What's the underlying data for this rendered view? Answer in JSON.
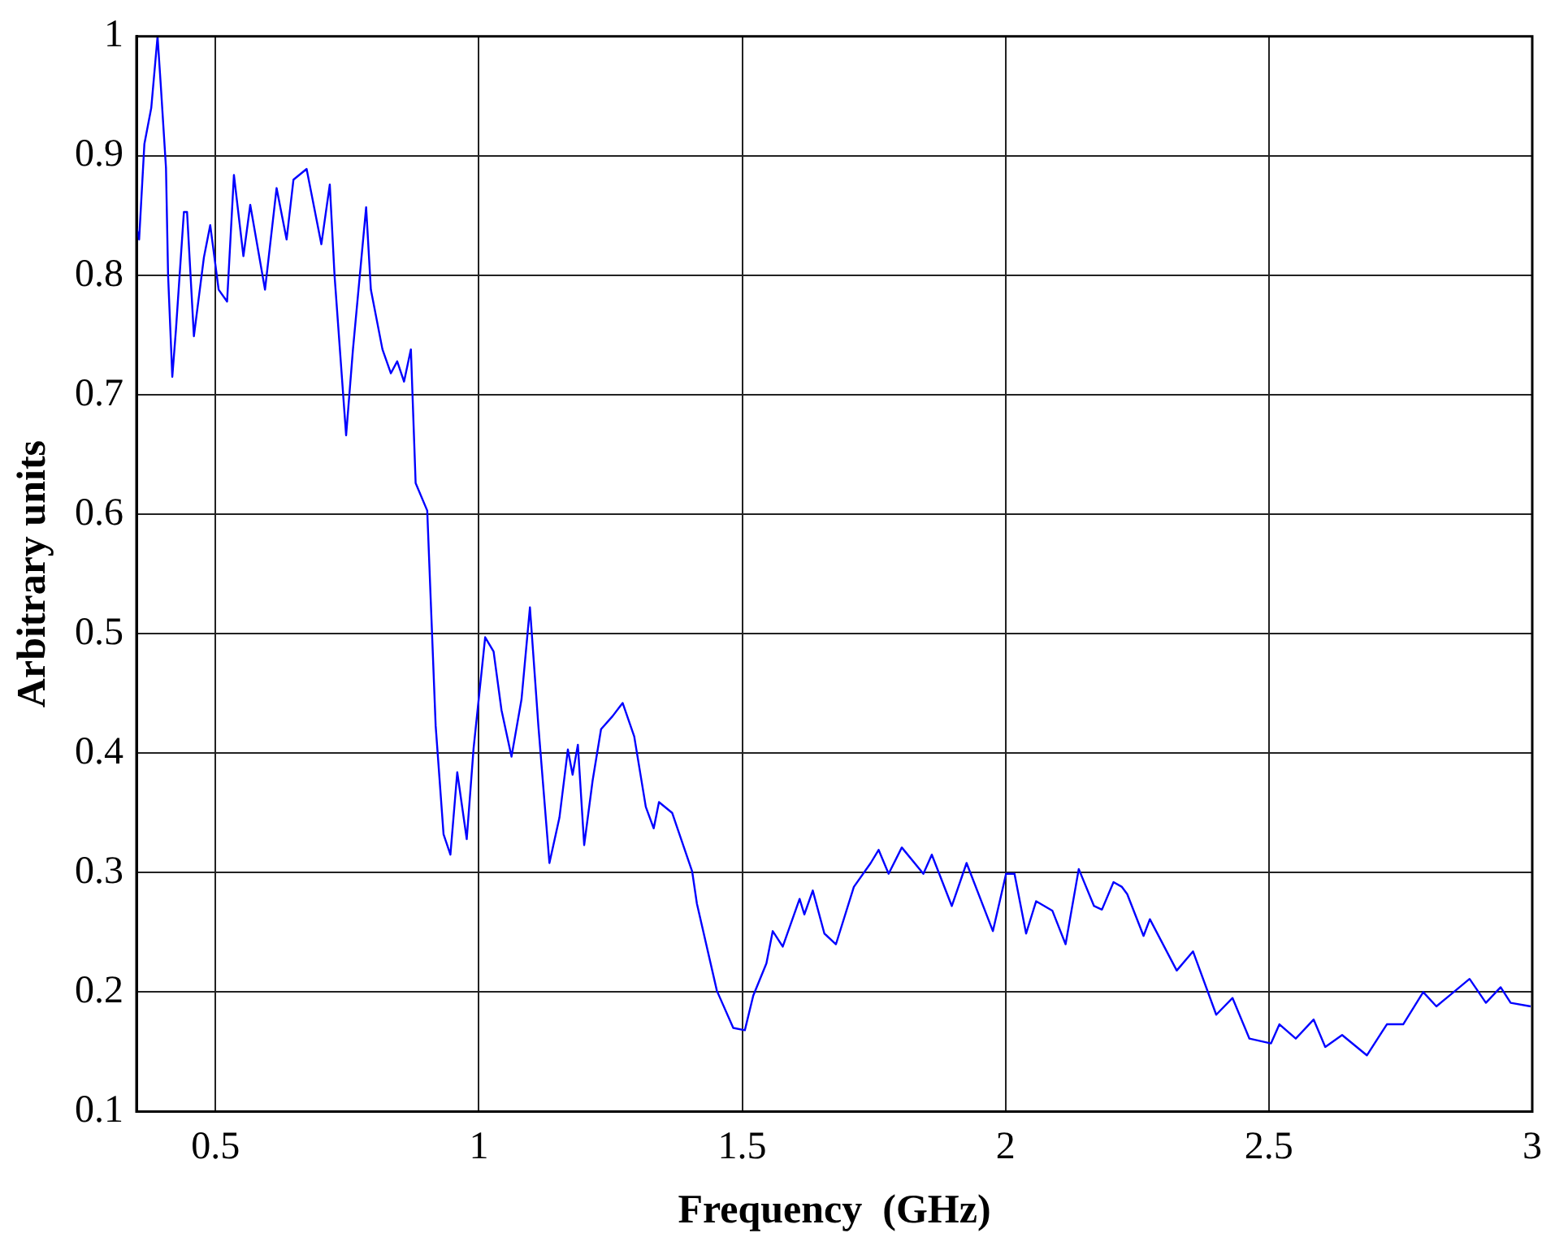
{
  "chart_data": {
    "type": "line",
    "xlabel": "Frequency  (GHz)",
    "ylabel": "Arbitrary units",
    "xlim": [
      0.35,
      3
    ],
    "xticks": [
      0.5,
      1,
      1.5,
      2,
      2.5,
      3
    ],
    "ylim": [
      0.1,
      1
    ],
    "yticks": [
      0.1,
      0.2,
      0.3,
      0.4,
      0.5,
      0.6,
      0.7,
      0.8,
      0.9,
      1
    ],
    "grid": true,
    "legend": false,
    "marker": "none",
    "line_style": "solid",
    "series": [
      {
        "color": "#0000ff",
        "x": [
          0.35,
          0.355,
          0.365,
          0.378,
          0.39,
          0.396,
          0.406,
          0.41,
          0.418,
          0.425,
          0.44,
          0.446,
          0.459,
          0.478,
          0.49,
          0.506,
          0.522,
          0.535,
          0.553,
          0.566,
          0.594,
          0.616,
          0.635,
          0.648,
          0.673,
          0.701,
          0.717,
          0.726,
          0.748,
          0.761,
          0.786,
          0.795,
          0.817,
          0.833,
          0.845,
          0.858,
          0.871,
          0.88,
          0.902,
          0.918,
          0.933,
          0.946,
          0.959,
          0.977,
          0.99,
          1.012,
          1.028,
          1.043,
          1.062,
          1.081,
          1.097,
          1.113,
          1.134,
          1.153,
          1.169,
          1.178,
          1.188,
          1.2,
          1.216,
          1.232,
          1.254,
          1.273,
          1.295,
          1.317,
          1.332,
          1.342,
          1.367,
          1.405,
          1.414,
          1.452,
          1.483,
          1.505,
          1.521,
          1.546,
          1.558,
          1.577,
          1.609,
          1.618,
          1.634,
          1.656,
          1.678,
          1.712,
          1.744,
          1.759,
          1.778,
          1.803,
          1.844,
          1.86,
          1.898,
          1.926,
          1.976,
          2.001,
          2.017,
          2.039,
          2.058,
          2.089,
          2.114,
          2.139,
          2.168,
          2.183,
          2.205,
          2.221,
          2.231,
          2.262,
          2.274,
          2.325,
          2.356,
          2.4,
          2.431,
          2.463,
          2.504,
          2.52,
          2.551,
          2.585,
          2.607,
          2.639,
          2.686,
          2.724,
          2.755,
          2.793,
          2.818,
          2.881,
          2.912,
          2.94,
          2.959,
          2.997
        ],
        "values": [
          0.84,
          0.83,
          0.91,
          0.94,
          1.0,
          0.96,
          0.89,
          0.8,
          0.715,
          0.755,
          0.853,
          0.853,
          0.749,
          0.815,
          0.842,
          0.788,
          0.778,
          0.884,
          0.816,
          0.859,
          0.788,
          0.873,
          0.83,
          0.88,
          0.889,
          0.826,
          0.876,
          0.8,
          0.666,
          0.738,
          0.857,
          0.788,
          0.738,
          0.718,
          0.728,
          0.711,
          0.738,
          0.626,
          0.603,
          0.423,
          0.332,
          0.315,
          0.384,
          0.328,
          0.404,
          0.497,
          0.485,
          0.436,
          0.397,
          0.445,
          0.522,
          0.423,
          0.308,
          0.346,
          0.403,
          0.382,
          0.407,
          0.323,
          0.377,
          0.42,
          0.431,
          0.442,
          0.414,
          0.355,
          0.337,
          0.359,
          0.35,
          0.301,
          0.274,
          0.201,
          0.17,
          0.168,
          0.197,
          0.224,
          0.251,
          0.238,
          0.278,
          0.265,
          0.285,
          0.249,
          0.24,
          0.288,
          0.308,
          0.319,
          0.299,
          0.321,
          0.299,
          0.315,
          0.272,
          0.308,
          0.251,
          0.299,
          0.299,
          0.249,
          0.276,
          0.268,
          0.24,
          0.303,
          0.272,
          0.269,
          0.292,
          0.288,
          0.282,
          0.247,
          0.261,
          0.218,
          0.234,
          0.181,
          0.195,
          0.161,
          0.157,
          0.173,
          0.161,
          0.177,
          0.154,
          0.164,
          0.147,
          0.173,
          0.173,
          0.2,
          0.188,
          0.211,
          0.191,
          0.204,
          0.191,
          0.188
        ]
      }
    ]
  }
}
